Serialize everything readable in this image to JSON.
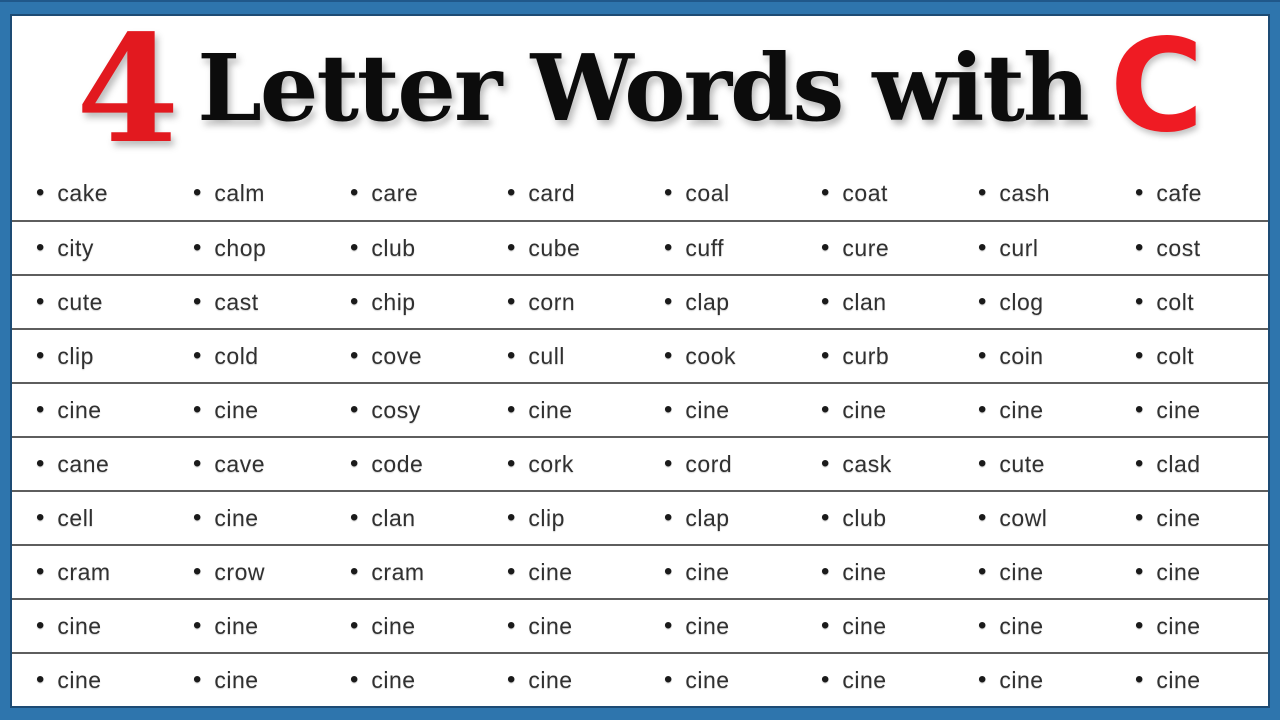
{
  "page": {
    "frame_color": "#2e75ad",
    "frame_inner_line_color": "#1d4b74",
    "background_color": "#ffffff",
    "divider_color": "#5e5e5e",
    "accent_red": "#e2191f",
    "title_black": "#0c0c0c",
    "word_text_color": "#303030"
  },
  "title": {
    "number": "4",
    "main": "Letter Words with",
    "letter": "C"
  },
  "grid": {
    "bullet": "•",
    "columns": 8,
    "rows": [
      [
        "cake",
        "calm",
        "care",
        "card",
        "coal",
        "coat",
        "cash",
        "cafe"
      ],
      [
        "city",
        "chop",
        "club",
        "cube",
        "cuff",
        "cure",
        "curl",
        "cost"
      ],
      [
        "cute",
        "cast",
        "chip",
        "corn",
        "clap",
        "clan",
        "clog",
        "colt"
      ],
      [
        "clip",
        "cold",
        "cove",
        "cull",
        "cook",
        "curb",
        "coin",
        "colt"
      ],
      [
        "cine",
        "cine",
        "cosy",
        "cine",
        "cine",
        "cine",
        "cine",
        "cine"
      ],
      [
        "cane",
        "cave",
        "code",
        "cork",
        "cord",
        "cask",
        "cute",
        "clad"
      ],
      [
        "cell",
        "cine",
        "clan",
        "clip",
        "clap",
        "club",
        "cowl",
        "cine"
      ],
      [
        "cram",
        "crow",
        "cram",
        "cine",
        "cine",
        "cine",
        "cine",
        "cine"
      ],
      [
        "cine",
        "cine",
        "cine",
        "cine",
        "cine",
        "cine",
        "cine",
        "cine"
      ],
      [
        "cine",
        "cine",
        "cine",
        "cine",
        "cine",
        "cine",
        "cine",
        "cine"
      ]
    ]
  }
}
